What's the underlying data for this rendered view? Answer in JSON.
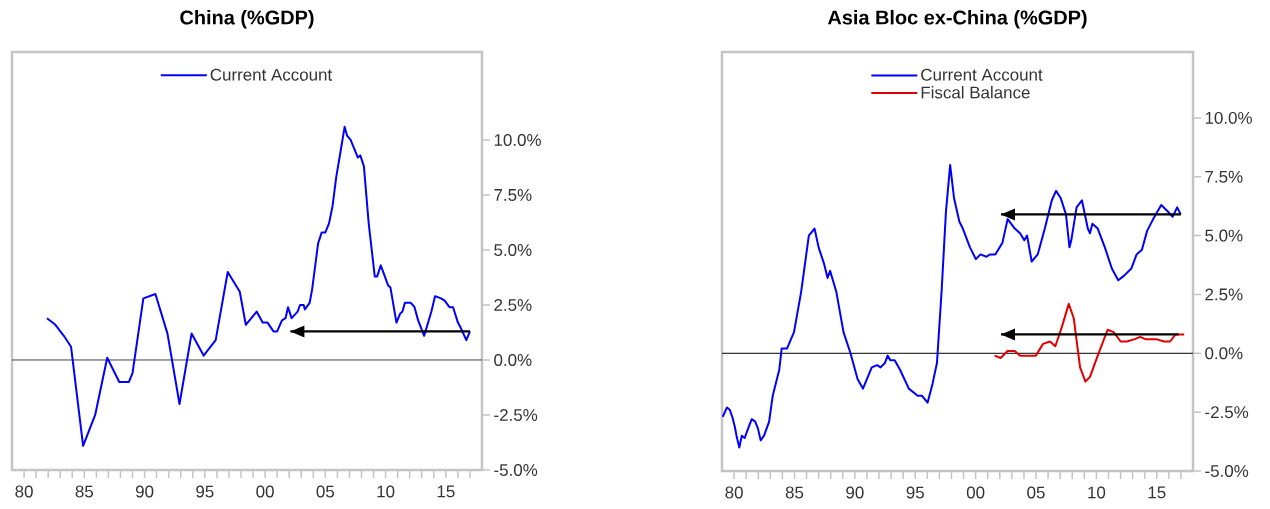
{
  "chart_data": [
    {
      "type": "line",
      "title": "China (%GDP)",
      "legend": "top",
      "xlim": [
        1979,
        2018
      ],
      "ylim": [
        -5,
        14
      ],
      "xticks": [
        {
          "value": 1980,
          "label": "80"
        },
        {
          "value": 1981,
          "label": null
        },
        {
          "value": 1982,
          "label": null
        },
        {
          "value": 1983,
          "label": null
        },
        {
          "value": 1984,
          "label": null
        },
        {
          "value": 1985,
          "label": "85"
        },
        {
          "value": 1986,
          "label": null
        },
        {
          "value": 1987,
          "label": null
        },
        {
          "value": 1988,
          "label": null
        },
        {
          "value": 1989,
          "label": null
        },
        {
          "value": 1990,
          "label": "90"
        },
        {
          "value": 1991,
          "label": null
        },
        {
          "value": 1992,
          "label": null
        },
        {
          "value": 1993,
          "label": null
        },
        {
          "value": 1994,
          "label": null
        },
        {
          "value": 1995,
          "label": "95"
        },
        {
          "value": 1996,
          "label": null
        },
        {
          "value": 1997,
          "label": null
        },
        {
          "value": 1998,
          "label": null
        },
        {
          "value": 1999,
          "label": null
        },
        {
          "value": 2000,
          "label": "00"
        },
        {
          "value": 2001,
          "label": null
        },
        {
          "value": 2002,
          "label": null
        },
        {
          "value": 2003,
          "label": null
        },
        {
          "value": 2004,
          "label": null
        },
        {
          "value": 2005,
          "label": "05"
        },
        {
          "value": 2006,
          "label": null
        },
        {
          "value": 2007,
          "label": null
        },
        {
          "value": 2008,
          "label": null
        },
        {
          "value": 2009,
          "label": null
        },
        {
          "value": 2010,
          "label": "10"
        },
        {
          "value": 2011,
          "label": null
        },
        {
          "value": 2012,
          "label": null
        },
        {
          "value": 2013,
          "label": null
        },
        {
          "value": 2014,
          "label": null
        },
        {
          "value": 2015,
          "label": "15"
        },
        {
          "value": 2016,
          "label": null
        },
        {
          "value": 2017,
          "label": null
        }
      ],
      "yticks": [
        {
          "value": -5,
          "label": "-5.0%"
        },
        {
          "value": -2.5,
          "label": "-2.5%"
        },
        {
          "value": 0,
          "label": "0.0%"
        },
        {
          "value": 2.5,
          "label": "2.5%"
        },
        {
          "value": 5,
          "label": "5.0%"
        },
        {
          "value": 7.5,
          "label": "7.5%"
        },
        {
          "value": 10,
          "label": "10.0%"
        }
      ],
      "ref_lines": [
        {
          "axis": "y",
          "value": 0,
          "color": "#404040"
        }
      ],
      "series": [
        {
          "name": "Current Account",
          "color": "#0000ff",
          "x": [
            1981.9,
            1982.6,
            1983.3,
            1983.9,
            1984.9,
            1985.9,
            1986.9,
            1987.9,
            1988.7,
            1989.0,
            1989.9,
            1990.9,
            1991.9,
            1992.9,
            1993.9,
            1994.9,
            1995.9,
            1996.9,
            1997.9,
            1998.4,
            1999.3,
            1999.8,
            2000.2,
            2000.7,
            2001.0,
            2001.4,
            2001.7,
            2001.9,
            2002.2,
            2002.7,
            2002.9,
            2003.2,
            2003.3,
            2003.7,
            2003.9,
            2004.4,
            2004.7,
            2005.0,
            2005.3,
            2005.6,
            2005.9,
            2006.3,
            2006.6,
            2006.8,
            2007.1,
            2007.7,
            2007.9,
            2008.2,
            2008.6,
            2009.1,
            2009.3,
            2009.6,
            2010.2,
            2010.4,
            2010.9,
            2011.2,
            2011.4,
            2011.6,
            2012.1,
            2012.4,
            2012.7,
            2013.2,
            2013.8,
            2014.1,
            2014.6,
            2014.9,
            2015.3,
            2015.6,
            2016.0,
            2016.2,
            2016.7,
            2017.0
          ],
          "values": [
            1.9,
            1.6,
            1.1,
            0.6,
            -3.9,
            -2.5,
            0.1,
            -1.0,
            -1.0,
            -0.6,
            2.8,
            3.0,
            1.2,
            -2.0,
            1.2,
            0.2,
            0.9,
            4.0,
            3.1,
            1.6,
            2.2,
            1.7,
            1.7,
            1.3,
            1.3,
            1.8,
            1.9,
            2.4,
            1.9,
            2.2,
            2.5,
            2.5,
            2.3,
            2.6,
            3.2,
            5.3,
            5.8,
            5.8,
            6.2,
            7.0,
            8.3,
            9.6,
            10.6,
            10.2,
            10.0,
            9.2,
            9.3,
            8.8,
            6.2,
            3.8,
            3.8,
            4.3,
            3.4,
            3.3,
            1.7,
            2.1,
            2.2,
            2.6,
            2.6,
            2.4,
            1.8,
            1.1,
            2.2,
            2.9,
            2.8,
            2.7,
            2.4,
            2.4,
            1.7,
            1.5,
            0.9,
            1.3
          ]
        },
        {
          "color": "#000000",
          "x": [
            2017.0,
            2002.1
          ],
          "values": [
            1.3,
            1.3
          ]
        }
      ]
    },
    {
      "type": "line",
      "title": "Asia Bloc ex-China (%GDP)",
      "legend": "top",
      "xlim": [
        1979,
        2018
      ],
      "ylim": [
        -5,
        12.8
      ],
      "xticks": [
        {
          "value": 1980,
          "label": "80"
        },
        {
          "value": 1981,
          "label": null
        },
        {
          "value": 1982,
          "label": null
        },
        {
          "value": 1983,
          "label": null
        },
        {
          "value": 1984,
          "label": null
        },
        {
          "value": 1985,
          "label": "85"
        },
        {
          "value": 1986,
          "label": null
        },
        {
          "value": 1987,
          "label": null
        },
        {
          "value": 1988,
          "label": null
        },
        {
          "value": 1989,
          "label": null
        },
        {
          "value": 1990,
          "label": "90"
        },
        {
          "value": 1991,
          "label": null
        },
        {
          "value": 1992,
          "label": null
        },
        {
          "value": 1993,
          "label": null
        },
        {
          "value": 1994,
          "label": null
        },
        {
          "value": 1995,
          "label": "95"
        },
        {
          "value": 1996,
          "label": null
        },
        {
          "value": 1997,
          "label": null
        },
        {
          "value": 1998,
          "label": null
        },
        {
          "value": 1999,
          "label": null
        },
        {
          "value": 2000,
          "label": "00"
        },
        {
          "value": 2001,
          "label": null
        },
        {
          "value": 2002,
          "label": null
        },
        {
          "value": 2003,
          "label": null
        },
        {
          "value": 2004,
          "label": null
        },
        {
          "value": 2005,
          "label": "05"
        },
        {
          "value": 2006,
          "label": null
        },
        {
          "value": 2007,
          "label": null
        },
        {
          "value": 2008,
          "label": null
        },
        {
          "value": 2009,
          "label": null
        },
        {
          "value": 2010,
          "label": "10"
        },
        {
          "value": 2011,
          "label": null
        },
        {
          "value": 2012,
          "label": null
        },
        {
          "value": 2013,
          "label": null
        },
        {
          "value": 2014,
          "label": null
        },
        {
          "value": 2015,
          "label": "15"
        },
        {
          "value": 2016,
          "label": null
        },
        {
          "value": 2017,
          "label": null
        }
      ],
      "yticks": [
        {
          "value": -5,
          "label": "-5.0%"
        },
        {
          "value": -2.5,
          "label": "-2.5%"
        },
        {
          "value": 0,
          "label": "0.0%"
        },
        {
          "value": 2.5,
          "label": "2.5%"
        },
        {
          "value": 5,
          "label": "5.0%"
        },
        {
          "value": 7.5,
          "label": "7.5%"
        },
        {
          "value": 10,
          "label": "10.0%"
        }
      ],
      "ref_lines": [
        {
          "axis": "y",
          "value": 0,
          "color": "#000000"
        }
      ],
      "series": [
        {
          "name": "Current Account",
          "color": "#0000ff",
          "x": [
            1979.06,
            1979.41,
            1979.64,
            1979.85,
            1980.05,
            1980.2,
            1980.43,
            1980.64,
            1980.87,
            1981.16,
            1981.46,
            1981.75,
            1981.98,
            1982.2,
            1982.48,
            1982.9,
            1983.2,
            1983.74,
            1983.94,
            1984.38,
            1984.96,
            1985.55,
            1986.19,
            1986.66,
            1987.0,
            1987.45,
            1987.74,
            1987.95,
            1988.47,
            1989.06,
            1989.64,
            1990.23,
            1990.67,
            1991.4,
            1991.84,
            1992.13,
            1992.5,
            1992.71,
            1992.95,
            1993.3,
            1993.74,
            1994.47,
            1995.2,
            1995.55,
            1996.02,
            1996.43,
            1996.8,
            1997.19,
            1997.54,
            1997.89,
            1998.21,
            1998.65,
            1998.94,
            1999.53,
            2000.02,
            2000.4,
            2000.9,
            2001.19,
            2001.63,
            2002.22,
            2002.65,
            2003.24,
            2003.68,
            2004.03,
            2004.26,
            2004.64,
            2005.14,
            2005.73,
            2006.31,
            2006.66,
            2007.04,
            2007.48,
            2007.77,
            2007.92,
            2008.36,
            2008.8,
            2009.29,
            2009.47,
            2009.67,
            2010.11,
            2010.7,
            2011.28,
            2011.81,
            2012.3,
            2012.89,
            2013.33,
            2013.77,
            2014.2,
            2014.7,
            2015.37,
            2015.96,
            2016.31,
            2016.69,
            2016.98
          ],
          "values": [
            -2.7,
            -2.3,
            -2.4,
            -2.7,
            -3.1,
            -3.5,
            -4.0,
            -3.5,
            -3.6,
            -3.2,
            -2.8,
            -2.9,
            -3.2,
            -3.7,
            -3.5,
            -2.9,
            -1.8,
            -0.7,
            0.2,
            0.2,
            0.9,
            2.6,
            5.0,
            5.3,
            4.5,
            3.8,
            3.2,
            3.5,
            2.6,
            0.9,
            0.0,
            -1.1,
            -1.5,
            -0.6,
            -0.5,
            -0.6,
            -0.4,
            -0.1,
            -0.3,
            -0.3,
            -0.7,
            -1.5,
            -1.8,
            -1.8,
            -2.1,
            -1.3,
            -0.4,
            2.7,
            6.0,
            8.0,
            6.6,
            5.6,
            5.3,
            4.5,
            4.0,
            4.2,
            4.1,
            4.2,
            4.2,
            4.7,
            5.7,
            5.3,
            5.1,
            4.8,
            5.0,
            3.9,
            4.2,
            5.3,
            6.5,
            6.9,
            6.6,
            5.9,
            4.5,
            4.8,
            6.2,
            6.5,
            5.3,
            5.1,
            5.5,
            5.3,
            4.5,
            3.6,
            3.1,
            3.3,
            3.6,
            4.2,
            4.4,
            5.2,
            5.7,
            6.3,
            6.0,
            5.8,
            6.2,
            5.9
          ]
        },
        {
          "name": "Fiscal Balance",
          "color": "#e00000",
          "x": [
            2001.57,
            2002.07,
            2002.65,
            2003.24,
            2003.68,
            2004.26,
            2004.99,
            2005.58,
            2006.16,
            2006.6,
            2007.13,
            2007.71,
            2008.12,
            2008.65,
            2009.09,
            2009.47,
            2010.11,
            2010.93,
            2011.43,
            2012.01,
            2012.51,
            2013.18,
            2013.62,
            2014.06,
            2014.5,
            2014.94,
            2015.61,
            2016.11,
            2016.54,
            2017.27
          ],
          "values": [
            -0.1,
            -0.2,
            0.1,
            0.1,
            -0.1,
            -0.1,
            -0.1,
            0.4,
            0.5,
            0.3,
            1.1,
            2.1,
            1.5,
            -0.6,
            -1.2,
            -1.0,
            -0.1,
            1.0,
            0.9,
            0.5,
            0.5,
            0.6,
            0.7,
            0.6,
            0.6,
            0.6,
            0.5,
            0.5,
            0.8,
            0.8
          ]
        },
        {
          "color": "#000000",
          "x": [
            2017.0,
            2002.1
          ],
          "values": [
            5.9,
            5.9
          ]
        },
        {
          "color": "#000000",
          "x": [
            2016.8,
            2002.1
          ],
          "values": [
            0.8,
            0.8
          ]
        }
      ]
    }
  ]
}
